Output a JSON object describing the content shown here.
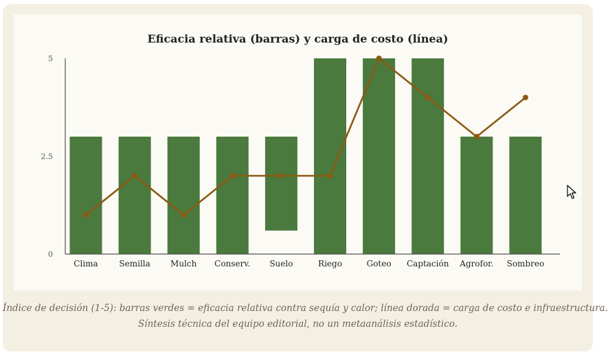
{
  "chart_data": {
    "type": "bar",
    "title": "Eficacia relativa (barras) y carga de costo (línea)",
    "categories": [
      "Clima",
      "Semilla",
      "Mulch",
      "Conserv.",
      "Suelo",
      "Riego",
      "Goteo",
      "Captación",
      "Agrofor.",
      "Sombreo"
    ],
    "series": [
      {
        "kind": "bar",
        "ranges": [
          [
            0,
            3
          ],
          [
            0,
            3
          ],
          [
            0,
            3
          ],
          [
            0,
            3
          ],
          [
            0.6,
            3
          ],
          [
            0,
            5
          ],
          [
            0,
            5
          ],
          [
            0,
            5
          ],
          [
            0,
            3
          ],
          [
            0,
            3
          ]
        ],
        "color": "#4a7a3d"
      },
      {
        "kind": "line",
        "values": [
          1,
          2,
          1,
          2,
          2,
          2,
          5,
          4,
          3,
          4
        ],
        "color": "#8b5a14"
      }
    ],
    "yticks": [
      "0",
      "2.5",
      "5"
    ],
    "ylim": [
      0,
      5
    ],
    "grid": false
  },
  "caption": {
    "line1": "Índice de decisión (1-5): barras verdes = eficacia relativa contra sequía y calor; línea dorada = carga de costo e infraestructura.",
    "line2": "Síntesis técnica del equipo editorial, no un metaanálisis estadístico."
  }
}
